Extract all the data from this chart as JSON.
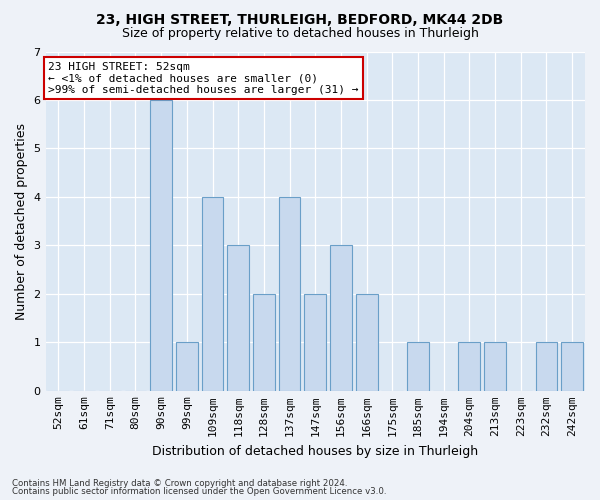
{
  "title1": "23, HIGH STREET, THURLEIGH, BEDFORD, MK44 2DB",
  "title2": "Size of property relative to detached houses in Thurleigh",
  "xlabel": "Distribution of detached houses by size in Thurleigh",
  "ylabel": "Number of detached properties",
  "categories": [
    "52sqm",
    "61sqm",
    "71sqm",
    "80sqm",
    "90sqm",
    "99sqm",
    "109sqm",
    "118sqm",
    "128sqm",
    "137sqm",
    "147sqm",
    "156sqm",
    "166sqm",
    "175sqm",
    "185sqm",
    "194sqm",
    "204sqm",
    "213sqm",
    "223sqm",
    "232sqm",
    "242sqm"
  ],
  "values": [
    0,
    0,
    0,
    0,
    6,
    1,
    4,
    3,
    2,
    4,
    2,
    3,
    2,
    0,
    1,
    0,
    1,
    1,
    0,
    1,
    1
  ],
  "bar_color": "#c8d9ee",
  "bar_edge_color": "#6a9fc8",
  "annotation_title": "23 HIGH STREET: 52sqm",
  "annotation_line1": "← <1% of detached houses are smaller (0)",
  "annotation_line2": ">99% of semi-detached houses are larger (31) →",
  "annotation_box_facecolor": "#ffffff",
  "annotation_box_edgecolor": "#cc0000",
  "footer1": "Contains HM Land Registry data © Crown copyright and database right 2024.",
  "footer2": "Contains public sector information licensed under the Open Government Licence v3.0.",
  "ylim": [
    0,
    7
  ],
  "yticks": [
    0,
    1,
    2,
    3,
    4,
    5,
    6,
    7
  ],
  "fig_bg_color": "#eef2f8",
  "plot_bg_color": "#dce8f4",
  "title1_fontsize": 10,
  "title2_fontsize": 9,
  "ylabel_fontsize": 9,
  "xlabel_fontsize": 9,
  "tick_fontsize": 8,
  "ann_fontsize": 8
}
